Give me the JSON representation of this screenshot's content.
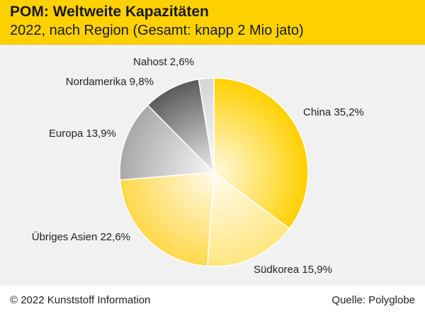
{
  "header": {
    "title": "POM: Weltweite Kapazitäten",
    "subtitle": "2022, nach Region (Gesamt: knapp 2 Mio jato)"
  },
  "footer": {
    "copyright": "© 2022 Kunststoff Information",
    "source": "Quelle: Polyglobe"
  },
  "chart_data": {
    "type": "pie",
    "title": "POM: Weltweite Kapazitäten",
    "subtitle": "2022, nach Region (Gesamt: knapp 2 Mio jato)",
    "slices": [
      {
        "label": "China",
        "value": 35.2,
        "display": "China 35,2%",
        "color": "#ffd000"
      },
      {
        "label": "Südkorea",
        "value": 15.9,
        "display": "Südkorea 15,9%",
        "color": "#ffe680"
      },
      {
        "label": "Übriges Asien",
        "value": 22.6,
        "display": "Übriges Asien 22,6%",
        "color": "#ffd84a"
      },
      {
        "label": "Europa",
        "value": 13.9,
        "display": "Europa 13,9%",
        "color": "#a8a8a8"
      },
      {
        "label": "Nordamerika",
        "value": 9.8,
        "display": "Nordamerika 9,8%",
        "color": "#5a5a5a"
      },
      {
        "label": "Nahost",
        "value": 2.6,
        "display": "Nahost 2,6%",
        "color": "#d4d4d4"
      }
    ]
  }
}
